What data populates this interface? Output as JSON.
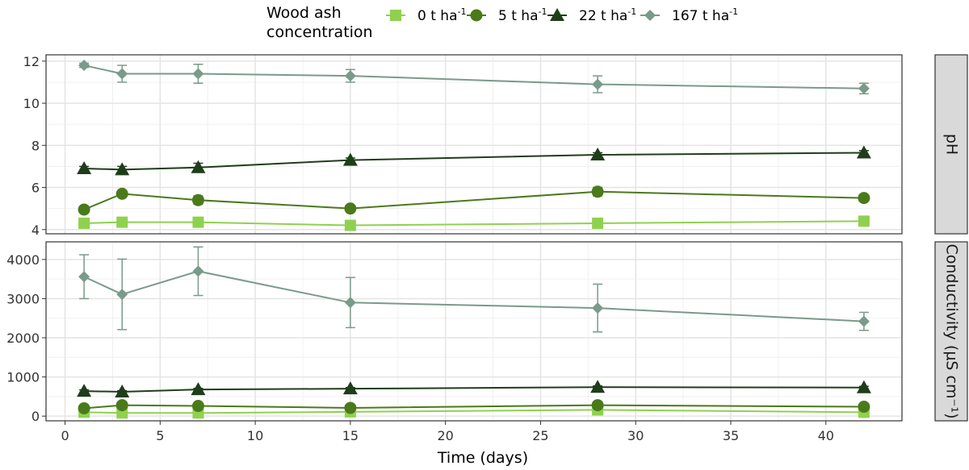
{
  "legend": {
    "title_line1": "Wood ash",
    "title_line2": "concentration"
  },
  "x_axis_title": "Time (days)",
  "series_style": [
    {
      "name_base": "0 t ha",
      "name_sup": "-1",
      "color": "#8fd14f",
      "shape": "square"
    },
    {
      "name_base": "5 t ha",
      "name_sup": "-1",
      "color": "#4a7a1a",
      "shape": "circle"
    },
    {
      "name_base": "22 t ha",
      "name_sup": "-1",
      "color": "#1f3d1a",
      "shape": "triangle"
    },
    {
      "name_base": "167 t ha",
      "name_sup": "-1",
      "color": "#7a9a8a",
      "shape": "diamond"
    }
  ],
  "chart_data": [
    {
      "type": "line",
      "panel_label": "pH",
      "x": [
        1,
        3,
        7,
        15,
        28,
        42
      ],
      "xlim": [
        -1,
        44
      ],
      "x_ticks": [
        0,
        5,
        10,
        15,
        20,
        25,
        30,
        35,
        40
      ],
      "ylim": [
        3.8,
        12.3
      ],
      "y_ticks": [
        4,
        6,
        8,
        10,
        12
      ],
      "grid": true,
      "series": [
        {
          "name": "0 t ha-1",
          "values": [
            4.3,
            4.35,
            4.35,
            4.2,
            4.3,
            4.4
          ],
          "err": [
            0.08,
            0.08,
            0.08,
            0.08,
            0.08,
            0.08
          ]
        },
        {
          "name": "5 t ha-1",
          "values": [
            4.95,
            5.7,
            5.4,
            5.0,
            5.8,
            5.5
          ],
          "err": [
            0.08,
            0.1,
            0.2,
            0.08,
            0.2,
            0.1
          ]
        },
        {
          "name": "22 t ha-1",
          "values": [
            6.9,
            6.85,
            6.95,
            7.3,
            7.55,
            7.65
          ],
          "err": [
            0.1,
            0.15,
            0.2,
            0.1,
            0.1,
            0.1
          ]
        },
        {
          "name": "167 t ha-1",
          "values": [
            11.8,
            11.4,
            11.4,
            11.3,
            10.9,
            10.7
          ],
          "err": [
            0.1,
            0.4,
            0.45,
            0.3,
            0.4,
            0.25
          ]
        }
      ]
    },
    {
      "type": "line",
      "panel_label": "Conductivity (µS cm⁻¹)",
      "x": [
        1,
        3,
        7,
        15,
        28,
        42
      ],
      "xlim": [
        -1,
        44
      ],
      "x_ticks": [
        0,
        5,
        10,
        15,
        20,
        25,
        30,
        35,
        40
      ],
      "ylim": [
        -120,
        4450
      ],
      "y_ticks": [
        0,
        1000,
        2000,
        3000,
        4000
      ],
      "grid": true,
      "series": [
        {
          "name": "0 t ha-1",
          "values": [
            100,
            80,
            80,
            110,
            160,
            100
          ],
          "err": [
            10,
            10,
            10,
            10,
            10,
            10
          ]
        },
        {
          "name": "5 t ha-1",
          "values": [
            200,
            280,
            260,
            210,
            280,
            240
          ],
          "err": [
            20,
            20,
            20,
            20,
            20,
            20
          ]
        },
        {
          "name": "22 t ha-1",
          "values": [
            640,
            620,
            680,
            700,
            740,
            730
          ],
          "err": [
            30,
            30,
            30,
            30,
            30,
            30
          ]
        },
        {
          "name": "167 t ha-1",
          "values": [
            3560,
            3110,
            3700,
            2900,
            2760,
            2420
          ],
          "err": [
            560,
            900,
            620,
            640,
            610,
            230
          ]
        }
      ]
    }
  ]
}
